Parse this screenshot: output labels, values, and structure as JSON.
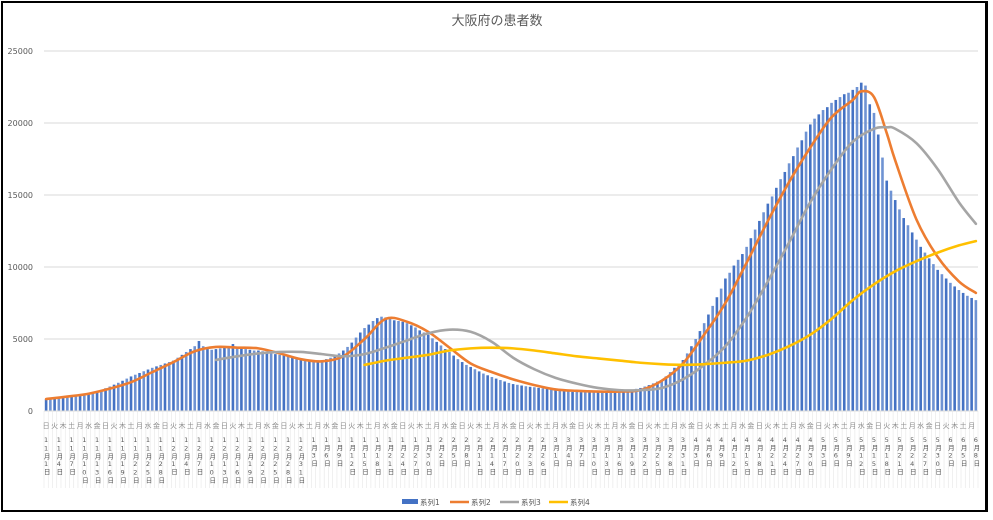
{
  "chart_data": {
    "type": "bar+line",
    "title": "大阪府の患者数",
    "xlabel": "",
    "ylabel": "",
    "ylim": [
      0,
      25000
    ],
    "yticks": [
      0,
      5000,
      10000,
      15000,
      20000,
      25000
    ],
    "grid": true,
    "legend_position": "bottom",
    "colors": {
      "系列1": "#4472C4",
      "系列2": "#ED7D31",
      "系列3": "#A5A5A5",
      "系列4": "#FFC000"
    },
    "weekday_labels": [
      "日",
      "火",
      "木",
      "土",
      "月",
      "水",
      "金",
      "日",
      "火",
      "木",
      "土",
      "月",
      "水",
      "金",
      "日",
      "火",
      "木",
      "土",
      "月",
      "水",
      "金",
      "日",
      "火",
      "木",
      "土",
      "月",
      "水",
      "金",
      "日",
      "火",
      "木",
      "土",
      "月",
      "水",
      "金",
      "日",
      "火",
      "木",
      "土",
      "月",
      "水",
      "金",
      "日",
      "火",
      "木",
      "土",
      "月",
      "水",
      "金",
      "日",
      "火",
      "木",
      "土",
      "月",
      "水",
      "金",
      "日",
      "火",
      "木",
      "土",
      "月",
      "水",
      "金",
      "日",
      "火",
      "木",
      "土",
      "月",
      "水",
      "金",
      "日",
      "火",
      "木",
      "土",
      "月",
      "水",
      "金",
      "日",
      "火",
      "木",
      "土",
      "月",
      "水",
      "金",
      "日",
      "火",
      "木",
      "土",
      "月",
      "水",
      "金",
      "日",
      "火",
      "木",
      "土",
      "月",
      "水",
      "金",
      "日",
      "火",
      "木",
      "土",
      "月",
      "水",
      "金",
      "日",
      "火",
      "木",
      "土",
      "月"
    ],
    "date_labels": [
      "11月1日",
      "11月4日",
      "11月7日",
      "11月10日",
      "11月13日",
      "11月16日",
      "11月19日",
      "11月22日",
      "11月25日",
      "11月28日",
      "12月1日",
      "12月4日",
      "12月7日",
      "12月10日",
      "12月13日",
      "12月16日",
      "12月19日",
      "12月22日",
      "12月25日",
      "12月28日",
      "12月31日",
      "1月3日",
      "1月6日",
      "1月9日",
      "1月12日",
      "1月15日",
      "1月18日",
      "1月21日",
      "1月24日",
      "1月27日",
      "1月30日",
      "2月2日",
      "2月5日",
      "2月8日",
      "2月11日",
      "2月14日",
      "2月17日",
      "2月20日",
      "2月23日",
      "2月26日",
      "3月1日",
      "3月4日",
      "3月7日",
      "3月10日",
      "3月13日",
      "3月16日",
      "3月19日",
      "3月22日",
      "3月25日",
      "3月28日",
      "3月31日",
      "4月3日",
      "4月6日",
      "4月9日",
      "4月12日",
      "4月15日",
      "4月18日",
      "4月21日",
      "4月24日",
      "4月27日",
      "4月30日",
      "5月3日",
      "5月6日",
      "5月9日",
      "5月12日",
      "5月15日",
      "5月18日",
      "5月21日",
      "5月24日",
      "5月27日",
      "5月30日",
      "6月2日",
      "6月5日",
      "6月8日"
    ],
    "series": [
      {
        "name": "系列1",
        "type": "bar",
        "start": "11月1日",
        "values": [
          830,
          860,
          900,
          940,
          970,
          1000,
          1030,
          1060,
          1090,
          1120,
          1150,
          1250,
          1350,
          1450,
          1580,
          1700,
          1830,
          1960,
          2100,
          2250,
          2400,
          2520,
          2640,
          2760,
          2880,
          3000,
          3100,
          3200,
          3300,
          3400,
          3500,
          3700,
          3900,
          4100,
          4300,
          4500,
          4860,
          4500,
          4300,
          4250,
          4300,
          4350,
          4400,
          4450,
          4650,
          4400,
          4350,
          4300,
          4250,
          4200,
          4200,
          4150,
          4100,
          4000,
          3950,
          3900,
          3850,
          3800,
          3700,
          3650,
          3600,
          3580,
          3550,
          3520,
          3500,
          3500,
          3600,
          3700,
          3850,
          4000,
          4200,
          4450,
          4750,
          5100,
          5450,
          5760,
          6000,
          6250,
          6450,
          6550,
          6500,
          6400,
          6300,
          6250,
          6200,
          6100,
          5950,
          5800,
          5600,
          5450,
          5300,
          5050,
          4800,
          4550,
          4300,
          4100,
          3850,
          3600,
          3400,
          3200,
          3060,
          2900,
          2750,
          2600,
          2480,
          2360,
          2250,
          2150,
          2050,
          1950,
          1870,
          1820,
          1770,
          1720,
          1680,
          1650,
          1610,
          1570,
          1530,
          1490,
          1460,
          1430,
          1400,
          1370,
          1340,
          1320,
          1310,
          1300,
          1300,
          1300,
          1300,
          1300,
          1310,
          1320,
          1330,
          1350,
          1380,
          1420,
          1480,
          1540,
          1600,
          1700,
          1800,
          1920,
          2040,
          2150,
          2400,
          2700,
          3000,
          3250,
          3540,
          4000,
          4500,
          5000,
          5550,
          6100,
          6700,
          7300,
          7900,
          8500,
          9200,
          9600,
          10100,
          10500,
          10900,
          11400,
          12000,
          12600,
          13200,
          13800,
          14400,
          14900,
          15500,
          16100,
          16600,
          17200,
          17700,
          18300,
          18800,
          19400,
          19900,
          20300,
          20600,
          20900,
          21100,
          21400,
          21600,
          21800,
          22000,
          22100,
          22300,
          22500,
          22800,
          22600,
          21300,
          20700,
          19200,
          17600,
          16000,
          15300,
          14650,
          14000,
          13400,
          12900,
          12400,
          11900,
          11400,
          11000,
          10600,
          10200,
          9800,
          9500,
          9200,
          8900,
          8650,
          8400,
          8200,
          8000,
          7850,
          7700
        ]
      },
      {
        "name": "系列2",
        "type": "line",
        "points": [
          [
            "11月1日",
            830
          ],
          [
            "11月6日",
            1000
          ],
          [
            "11月11日",
            1200
          ],
          [
            "11月16日",
            1550
          ],
          [
            "11月21日",
            2000
          ],
          [
            "11月26日",
            2700
          ],
          [
            "12月1日",
            3400
          ],
          [
            "12月6日",
            4150
          ],
          [
            "12月11日",
            4450
          ],
          [
            "12月16日",
            4400
          ],
          [
            "12月21日",
            4350
          ],
          [
            "12月26日",
            4000
          ],
          [
            "12月31日",
            3600
          ],
          [
            "1月5日",
            3450
          ],
          [
            "1月10日",
            3800
          ],
          [
            "1月15日",
            5000
          ],
          [
            "1月20日",
            6400
          ],
          [
            "1月25日",
            6200
          ],
          [
            "1月30日",
            5500
          ],
          [
            "2月4日",
            4400
          ],
          [
            "2月9日",
            3300
          ],
          [
            "2月14日",
            2700
          ],
          [
            "2月19日",
            2200
          ],
          [
            "2月24日",
            1800
          ],
          [
            "3月1日",
            1500
          ],
          [
            "3月6日",
            1400
          ],
          [
            "3月11日",
            1350
          ],
          [
            "3月16日",
            1350
          ],
          [
            "3月21日",
            1450
          ],
          [
            "3月26日",
            2100
          ],
          [
            "3月31日",
            3300
          ],
          [
            "4月5日",
            5300
          ],
          [
            "4月10日",
            7500
          ],
          [
            "4月15日",
            10300
          ],
          [
            "4月20日",
            13200
          ],
          [
            "4月25日",
            15900
          ],
          [
            "4月30日",
            18300
          ],
          [
            "5月5日",
            20400
          ],
          [
            "5月10日",
            21600
          ],
          [
            "5月12日",
            22200
          ],
          [
            "5月15日",
            21800
          ],
          [
            "5月18日",
            19300
          ],
          [
            "5月20日",
            17400
          ],
          [
            "5月25日",
            13300
          ],
          [
            "5月30日",
            10700
          ],
          [
            "6月4日",
            9000
          ],
          [
            "6月8日",
            8200
          ]
        ]
      },
      {
        "name": "系列3",
        "type": "line",
        "points": [
          [
            "12月11日",
            3550
          ],
          [
            "12月16日",
            3800
          ],
          [
            "12月21日",
            4000
          ],
          [
            "12月26日",
            4100
          ],
          [
            "12月31日",
            4100
          ],
          [
            "1月5日",
            3950
          ],
          [
            "1月10日",
            3800
          ],
          [
            "1月15日",
            3950
          ],
          [
            "1月20日",
            4400
          ],
          [
            "1月25日",
            4900
          ],
          [
            "1月30日",
            5400
          ],
          [
            "2月4日",
            5650
          ],
          [
            "2月9日",
            5500
          ],
          [
            "2月14日",
            4800
          ],
          [
            "2月19日",
            3700
          ],
          [
            "2月24日",
            2900
          ],
          [
            "3月1日",
            2300
          ],
          [
            "3月6日",
            1900
          ],
          [
            "3月11日",
            1600
          ],
          [
            "3月16日",
            1450
          ],
          [
            "3月21日",
            1450
          ],
          [
            "3月26日",
            1600
          ],
          [
            "3月31日",
            2200
          ],
          [
            "4月5日",
            3200
          ],
          [
            "4月10日",
            4500
          ],
          [
            "4月15日",
            6500
          ],
          [
            "4月20日",
            9000
          ],
          [
            "4月25日",
            11700
          ],
          [
            "4月30日",
            14500
          ],
          [
            "5月5日",
            16800
          ],
          [
            "5月10日",
            18700
          ],
          [
            "5月15日",
            19600
          ],
          [
            "5月18日",
            19700
          ],
          [
            "5月20日",
            19600
          ],
          [
            "5月25日",
            18600
          ],
          [
            "5月30日",
            16800
          ],
          [
            "6月4日",
            14500
          ],
          [
            "6月8日",
            13000
          ]
        ]
      },
      {
        "name": "系列4",
        "type": "line",
        "points": [
          [
            "1月15日",
            3200
          ],
          [
            "1月20日",
            3500
          ],
          [
            "1月25日",
            3700
          ],
          [
            "1月30日",
            3900
          ],
          [
            "2月4日",
            4200
          ],
          [
            "2月9日",
            4350
          ],
          [
            "2月14日",
            4400
          ],
          [
            "2月19日",
            4350
          ],
          [
            "2月24日",
            4200
          ],
          [
            "3月1日",
            4000
          ],
          [
            "3月6日",
            3800
          ],
          [
            "3月11日",
            3650
          ],
          [
            "3月16日",
            3500
          ],
          [
            "3月21日",
            3350
          ],
          [
            "3月26日",
            3250
          ],
          [
            "3月31日",
            3200
          ],
          [
            "4月5日",
            3250
          ],
          [
            "4月10日",
            3350
          ],
          [
            "4月15日",
            3500
          ],
          [
            "4月20日",
            3900
          ],
          [
            "4月25日",
            4500
          ],
          [
            "4月30日",
            5300
          ],
          [
            "5月5日",
            6400
          ],
          [
            "5月10日",
            7700
          ],
          [
            "5月15日",
            8800
          ],
          [
            "5月20日",
            9700
          ],
          [
            "5月25日",
            10400
          ],
          [
            "5月30日",
            11000
          ],
          [
            "6月4日",
            11500
          ],
          [
            "6月8日",
            11800
          ]
        ]
      }
    ]
  }
}
